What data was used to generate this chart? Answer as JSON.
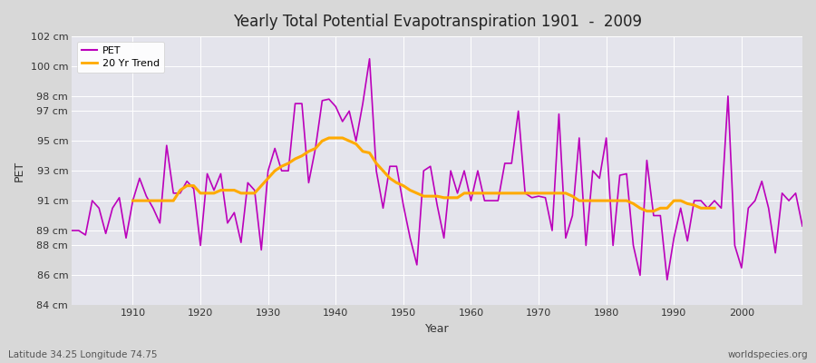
{
  "title": "Yearly Total Potential Evapotranspiration 1901  -  2009",
  "xlabel": "Year",
  "ylabel": "PET",
  "subtitle_left": "Latitude 34.25 Longitude 74.75",
  "subtitle_right": "worldspecies.org",
  "pet_color": "#bb00bb",
  "trend_color": "#ffaa00",
  "fig_bg_color": "#d8d8d8",
  "plot_bg_color": "#e4e4ec",
  "ylim": [
    84,
    102
  ],
  "xlim": [
    1901,
    2009
  ],
  "yticks": [
    84,
    86,
    88,
    89,
    91,
    93,
    95,
    97,
    98,
    100,
    102
  ],
  "xticks": [
    1910,
    1920,
    1930,
    1940,
    1950,
    1960,
    1970,
    1980,
    1990,
    2000
  ],
  "years": [
    1901,
    1902,
    1903,
    1904,
    1905,
    1906,
    1907,
    1908,
    1909,
    1910,
    1911,
    1912,
    1913,
    1914,
    1915,
    1916,
    1917,
    1918,
    1919,
    1920,
    1921,
    1922,
    1923,
    1924,
    1925,
    1926,
    1927,
    1928,
    1929,
    1930,
    1931,
    1932,
    1933,
    1934,
    1935,
    1936,
    1937,
    1938,
    1939,
    1940,
    1941,
    1942,
    1943,
    1944,
    1945,
    1946,
    1947,
    1948,
    1949,
    1950,
    1951,
    1952,
    1953,
    1954,
    1955,
    1956,
    1957,
    1958,
    1959,
    1960,
    1961,
    1962,
    1963,
    1964,
    1965,
    1966,
    1967,
    1968,
    1969,
    1970,
    1971,
    1972,
    1973,
    1974,
    1975,
    1976,
    1977,
    1978,
    1979,
    1980,
    1981,
    1982,
    1983,
    1984,
    1985,
    1986,
    1987,
    1988,
    1989,
    1990,
    1991,
    1992,
    1993,
    1994,
    1995,
    1996,
    1997,
    1998,
    1999,
    2000,
    2001,
    2002,
    2003,
    2004,
    2005,
    2006,
    2007,
    2008,
    2009
  ],
  "pet_values": [
    89.0,
    89.0,
    88.7,
    91.0,
    90.5,
    88.8,
    90.5,
    91.2,
    88.5,
    91.0,
    92.5,
    91.3,
    90.5,
    89.5,
    94.7,
    91.5,
    91.5,
    92.3,
    91.8,
    88.0,
    92.8,
    91.7,
    92.8,
    89.5,
    90.2,
    88.2,
    92.2,
    91.7,
    87.7,
    93.0,
    94.5,
    93.0,
    93.0,
    97.5,
    97.5,
    92.2,
    94.5,
    97.7,
    97.8,
    97.3,
    96.3,
    97.0,
    95.0,
    97.5,
    100.5,
    93.0,
    90.5,
    93.3,
    93.3,
    90.7,
    88.5,
    86.7,
    93.0,
    93.3,
    90.7,
    88.5,
    93.0,
    91.5,
    93.0,
    91.0,
    93.0,
    91.0,
    91.0,
    91.0,
    93.5,
    93.5,
    97.0,
    91.5,
    91.2,
    91.3,
    91.2,
    89.0,
    96.8,
    88.5,
    90.0,
    95.2,
    88.0,
    93.0,
    92.5,
    95.2,
    88.0,
    92.7,
    92.8,
    88.0,
    86.0,
    93.7,
    90.0,
    90.0,
    85.7,
    88.5,
    90.5,
    88.3,
    91.0,
    91.0,
    90.5,
    91.0,
    90.5,
    98.0,
    88.0,
    86.5,
    90.5,
    91.0,
    92.3,
    90.5,
    87.5,
    91.5,
    91.0,
    91.5,
    89.3
  ],
  "trend_values": [
    null,
    null,
    null,
    null,
    null,
    null,
    null,
    null,
    null,
    91.0,
    91.0,
    91.0,
    91.0,
    91.0,
    91.0,
    91.0,
    91.7,
    92.0,
    92.0,
    91.5,
    91.5,
    91.5,
    91.7,
    91.7,
    91.7,
    91.5,
    91.5,
    91.5,
    92.0,
    92.5,
    93.0,
    93.3,
    93.5,
    93.8,
    94.0,
    94.3,
    94.5,
    95.0,
    95.2,
    95.2,
    95.2,
    95.0,
    94.8,
    94.3,
    94.2,
    93.5,
    93.0,
    92.5,
    92.2,
    92.0,
    91.7,
    91.5,
    91.3,
    91.3,
    91.3,
    91.2,
    91.2,
    91.2,
    91.5,
    91.5,
    91.5,
    91.5,
    91.5,
    91.5,
    91.5,
    91.5,
    91.5,
    91.5,
    91.5,
    91.5,
    91.5,
    91.5,
    91.5,
    91.5,
    91.3,
    91.0,
    91.0,
    91.0,
    91.0,
    91.0,
    91.0,
    91.0,
    91.0,
    90.8,
    90.5,
    90.3,
    90.3,
    90.5,
    90.5,
    91.0,
    91.0,
    90.8,
    90.7,
    90.5,
    90.5,
    90.5,
    null,
    null,
    null
  ]
}
